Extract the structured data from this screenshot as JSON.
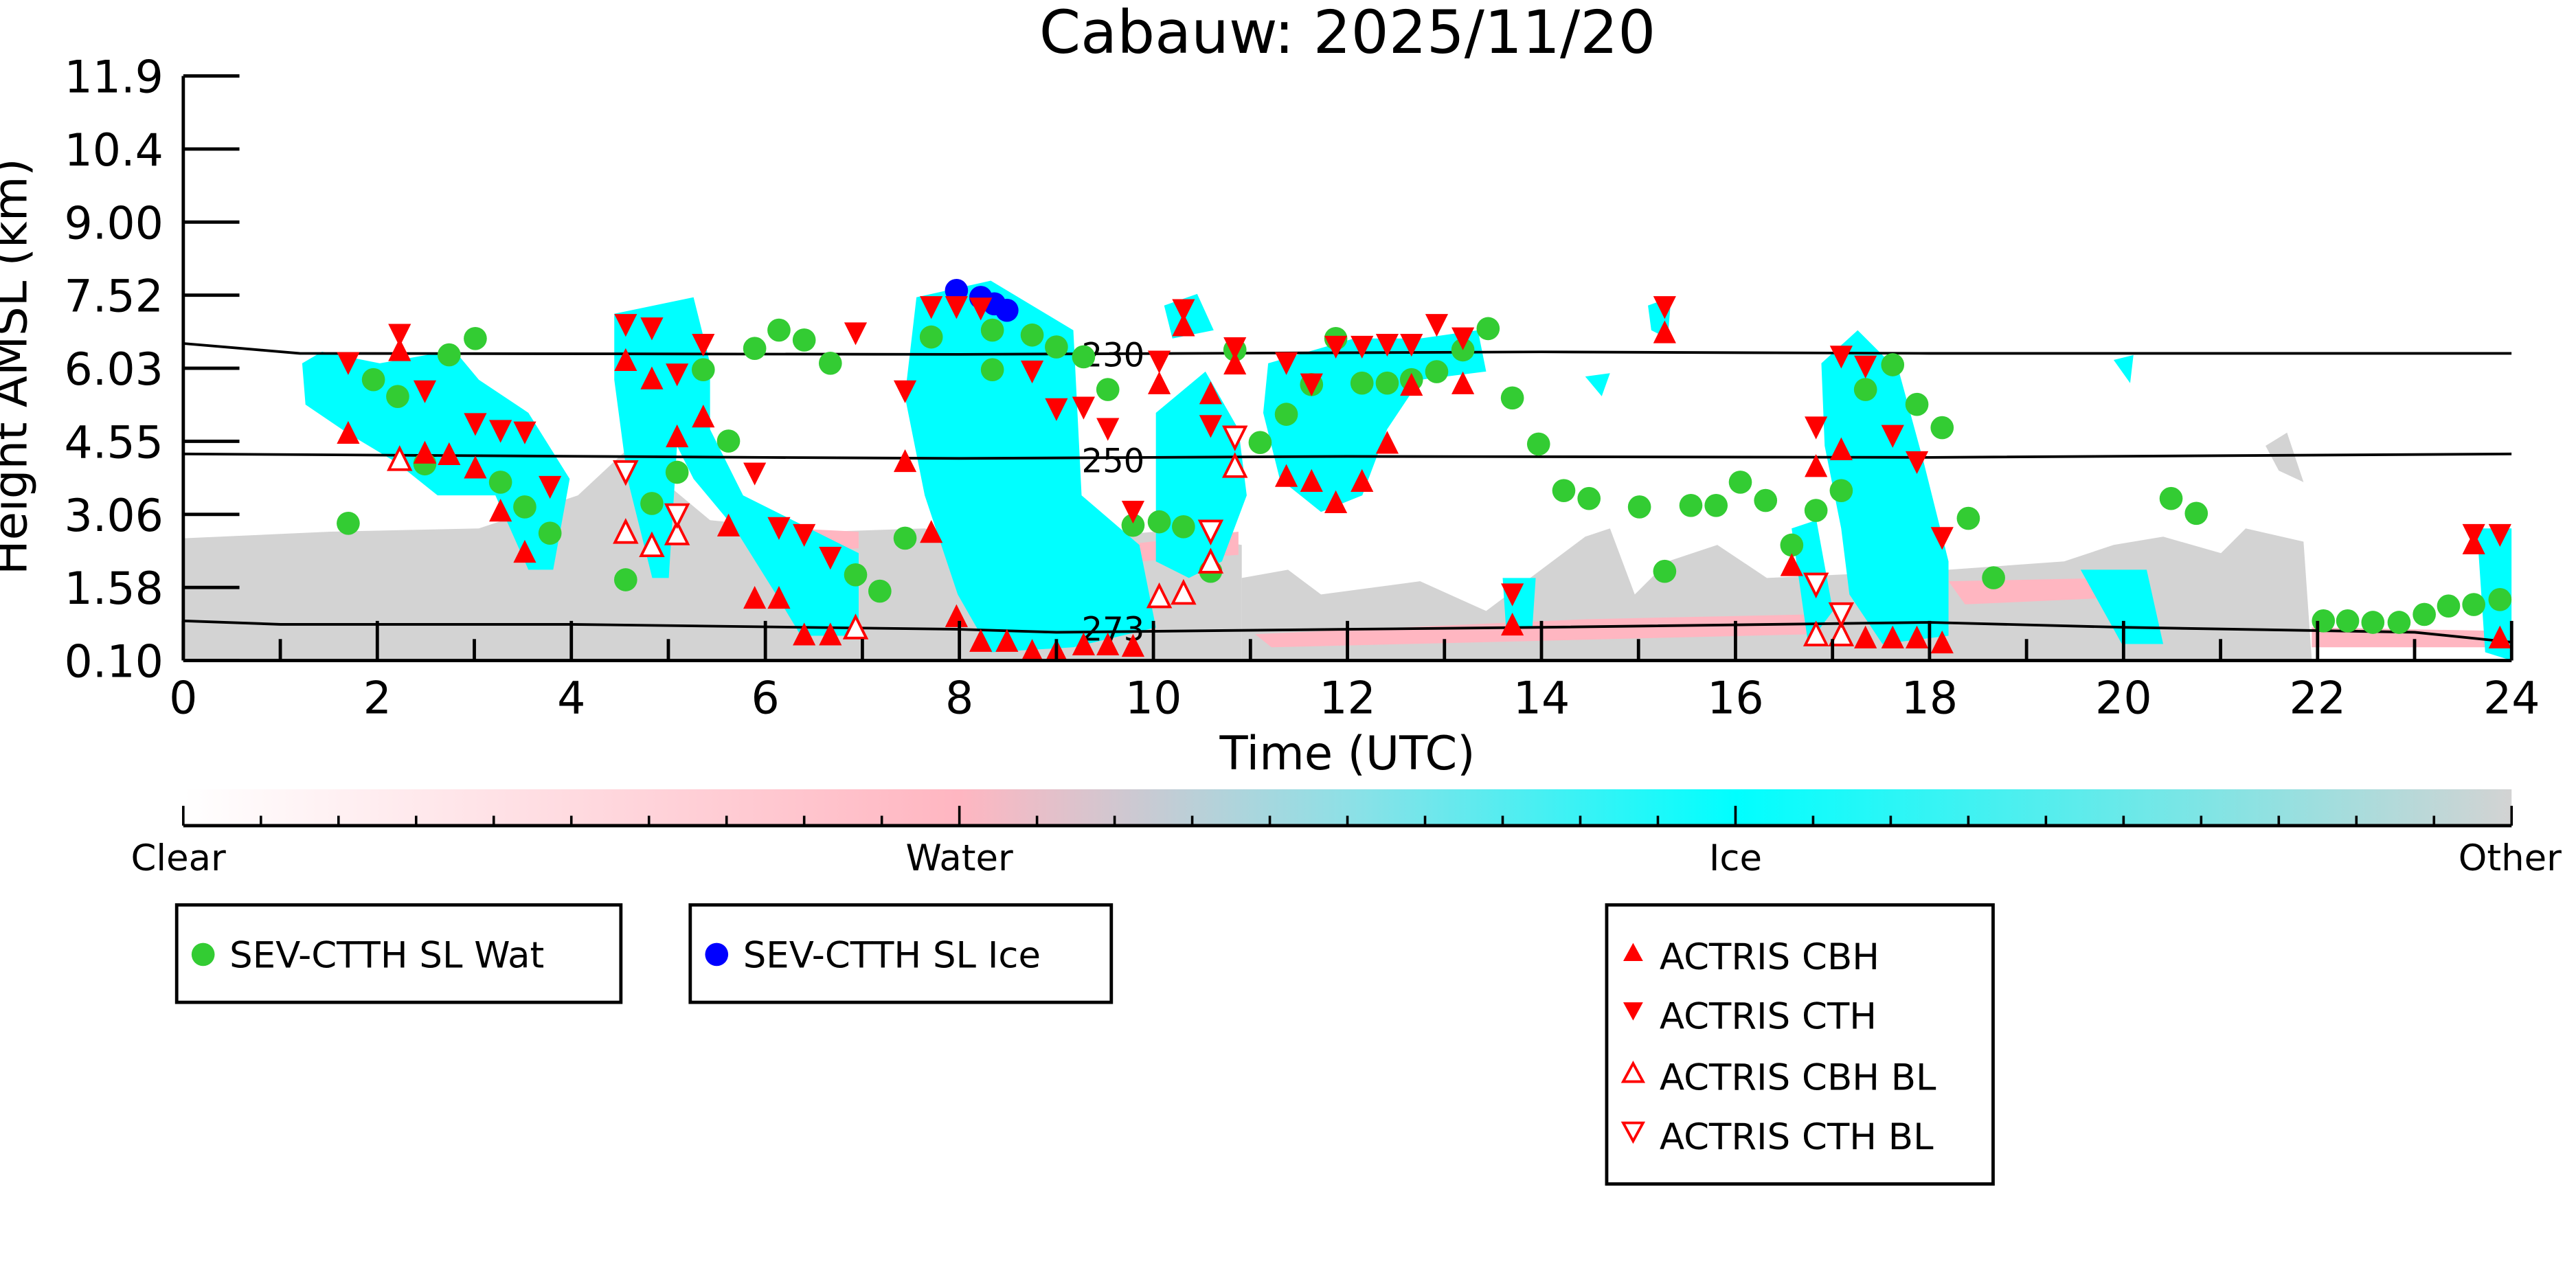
{
  "chart_data": {
    "type": "scatter",
    "title": "Cabauw: 2025/11/20",
    "xlabel": "Time (UTC)",
    "ylabel": "Height AMSL (km)",
    "xlim": [
      0,
      24
    ],
    "ylim": [
      0.1,
      11.9
    ],
    "xticks": [
      "0",
      "2",
      "4",
      "6",
      "8",
      "10",
      "12",
      "14",
      "16",
      "18",
      "20",
      "22",
      "24"
    ],
    "yticks": [
      "0.10",
      "1.58",
      "3.06",
      "4.55",
      "6.03",
      "7.52",
      "9.00",
      "10.4",
      "11.9"
    ],
    "grid": false,
    "colorbar": {
      "labels": [
        "Clear",
        "Water",
        "Ice",
        "Other"
      ],
      "colors": [
        "#ffffff",
        "#ffb6c1",
        "#00ffff",
        "#d3d3d3"
      ]
    },
    "contours": [
      {
        "label": "230",
        "x": [
          0,
          0.6,
          1.2,
          8,
          14,
          18,
          24
        ],
        "y": [
          6.5,
          6.4,
          6.3,
          6.28,
          6.33,
          6.3,
          6.3
        ]
      },
      {
        "label": "250",
        "x": [
          0,
          6,
          8,
          12,
          18,
          24
        ],
        "y": [
          4.27,
          4.2,
          4.18,
          4.22,
          4.2,
          4.27
        ]
      },
      {
        "label": "273",
        "x": [
          0,
          1,
          4,
          8,
          9,
          12,
          14,
          18,
          20,
          23,
          24
        ],
        "y": [
          0.9,
          0.83,
          0.83,
          0.73,
          0.67,
          0.73,
          0.77,
          0.87,
          0.77,
          0.67,
          0.47
        ]
      }
    ],
    "series": [
      {
        "name": "SEV-CTTH SL Wat",
        "marker": "circle",
        "color": "#33cc33",
        "x": [
          1.7,
          1.96,
          2.21,
          2.49,
          2.74,
          3.01,
          3.27,
          3.52,
          3.78,
          4.56,
          4.83,
          5.09,
          5.36,
          5.62,
          5.89,
          6.14,
          6.4,
          6.67,
          6.93,
          7.18,
          7.44,
          7.71,
          8.34,
          8.34,
          8.75,
          9.0,
          9.28,
          9.53,
          9.79,
          10.06,
          10.31,
          10.59,
          10.84,
          11.1,
          11.37,
          11.63,
          11.88,
          12.15,
          12.41,
          12.66,
          12.92,
          13.19,
          13.45,
          13.7,
          13.97,
          14.23,
          14.49,
          15.01,
          15.27,
          15.54,
          15.8,
          16.05,
          16.31,
          16.58,
          16.83,
          17.09,
          17.34,
          17.62,
          17.87,
          18.13,
          18.4,
          18.66,
          20.49,
          20.75,
          22.06,
          22.31,
          22.57,
          22.84,
          23.1,
          23.35,
          23.61,
          23.88
        ],
        "y": [
          2.87,
          5.77,
          5.43,
          4.07,
          6.27,
          6.6,
          3.7,
          3.2,
          2.67,
          1.73,
          3.27,
          3.9,
          5.97,
          4.53,
          6.4,
          6.77,
          6.57,
          6.1,
          1.83,
          1.5,
          2.57,
          6.63,
          5.97,
          6.77,
          6.67,
          6.43,
          6.23,
          5.57,
          2.83,
          2.9,
          2.8,
          1.9,
          6.37,
          4.5,
          5.07,
          5.67,
          6.6,
          5.7,
          5.7,
          5.77,
          5.93,
          6.37,
          6.8,
          5.4,
          4.47,
          3.53,
          3.37,
          3.2,
          1.9,
          3.23,
          3.23,
          3.7,
          3.33,
          2.43,
          3.13,
          3.53,
          5.57,
          6.07,
          5.27,
          4.8,
          2.97,
          1.77,
          3.37,
          3.07,
          0.9,
          0.9,
          0.87,
          0.87,
          1.03,
          1.2,
          1.23,
          1.33
        ]
      },
      {
        "name": "SEV-CTTH SL Ice",
        "marker": "circle",
        "color": "#0000ff",
        "x": [
          7.97,
          8.22,
          8.36,
          8.49
        ],
        "y": [
          7.57,
          7.43,
          7.3,
          7.17
        ]
      },
      {
        "name": "ACTRIS CBH",
        "marker": "triangle-up",
        "color": "#ff0000",
        "x": [
          1.7,
          2.23,
          2.49,
          2.74,
          3.01,
          3.27,
          3.52,
          4.56,
          4.83,
          5.09,
          5.36,
          5.62,
          5.89,
          6.14,
          6.4,
          6.67,
          7.44,
          7.71,
          7.97,
          8.22,
          8.49,
          8.75,
          9.0,
          9.28,
          9.53,
          9.79,
          10.06,
          10.31,
          10.59,
          10.84,
          11.37,
          11.63,
          11.88,
          12.15,
          12.41,
          12.66,
          13.19,
          13.7,
          15.27,
          16.58,
          16.83,
          17.09,
          17.34,
          17.62,
          17.87,
          18.13,
          23.61,
          23.88
        ],
        "y": [
          4.7,
          6.37,
          4.3,
          4.27,
          4.0,
          3.13,
          2.3,
          6.17,
          5.8,
          4.63,
          5.03,
          2.83,
          1.37,
          1.37,
          0.63,
          0.63,
          4.13,
          2.7,
          1.0,
          0.5,
          0.5,
          0.3,
          0.3,
          0.43,
          0.43,
          0.4,
          5.7,
          6.87,
          5.5,
          6.1,
          3.83,
          3.73,
          3.3,
          3.73,
          4.5,
          5.67,
          5.7,
          0.83,
          6.73,
          2.03,
          4.03,
          4.37,
          0.57,
          0.57,
          0.57,
          0.47,
          2.47,
          0.57
        ]
      },
      {
        "name": "ACTRIS CTH",
        "marker": "triangle-down",
        "color": "#ff0000",
        "x": [
          1.7,
          2.23,
          2.49,
          3.01,
          3.27,
          3.52,
          3.78,
          4.56,
          4.83,
          5.09,
          5.36,
          5.89,
          6.14,
          6.4,
          6.67,
          6.93,
          7.44,
          7.71,
          7.97,
          8.22,
          8.75,
          9.0,
          9.28,
          9.53,
          9.79,
          10.06,
          10.31,
          10.59,
          10.84,
          11.37,
          11.63,
          11.88,
          12.15,
          12.41,
          12.66,
          12.92,
          13.19,
          13.7,
          15.27,
          16.83,
          17.09,
          17.34,
          17.62,
          17.87,
          18.13,
          23.61,
          23.88
        ],
        "y": [
          6.1,
          6.67,
          5.53,
          4.87,
          4.73,
          4.7,
          3.6,
          6.87,
          6.8,
          5.87,
          6.47,
          3.87,
          2.77,
          2.63,
          2.17,
          6.7,
          5.53,
          7.23,
          7.23,
          7.2,
          5.93,
          5.17,
          5.2,
          4.77,
          3.1,
          6.13,
          7.17,
          4.83,
          6.4,
          6.1,
          5.67,
          6.43,
          6.43,
          6.47,
          6.47,
          6.87,
          6.6,
          1.43,
          7.23,
          4.8,
          6.23,
          6.03,
          4.63,
          4.1,
          2.57,
          2.63,
          2.63
        ]
      },
      {
        "name": "ACTRIS CBH BL",
        "marker": "triangle-up-open",
        "color": "#ff0000",
        "x": [
          2.23,
          4.56,
          4.83,
          5.09,
          6.93,
          10.06,
          10.31,
          10.59,
          10.84,
          16.83,
          17.09
        ],
        "y": [
          4.17,
          2.7,
          2.43,
          2.67,
          0.77,
          1.4,
          1.47,
          2.1,
          4.03,
          0.63,
          0.63
        ]
      },
      {
        "name": "ACTRIS CTH BL",
        "marker": "triangle-down-open",
        "color": "#ff0000",
        "x": [
          4.56,
          5.09,
          10.59,
          10.84,
          16.83,
          17.09
        ],
        "y": [
          3.9,
          3.03,
          2.7,
          4.6,
          1.63,
          1.03
        ]
      }
    ],
    "legend": {
      "box1": [
        "SEV-CTTH SL Wat"
      ],
      "box2": [
        "SEV-CTTH SL Ice"
      ],
      "box3": [
        "ACTRIS CBH",
        "ACTRIS CTH",
        "ACTRIS CBH BL",
        "ACTRIS CTH BL"
      ]
    }
  }
}
